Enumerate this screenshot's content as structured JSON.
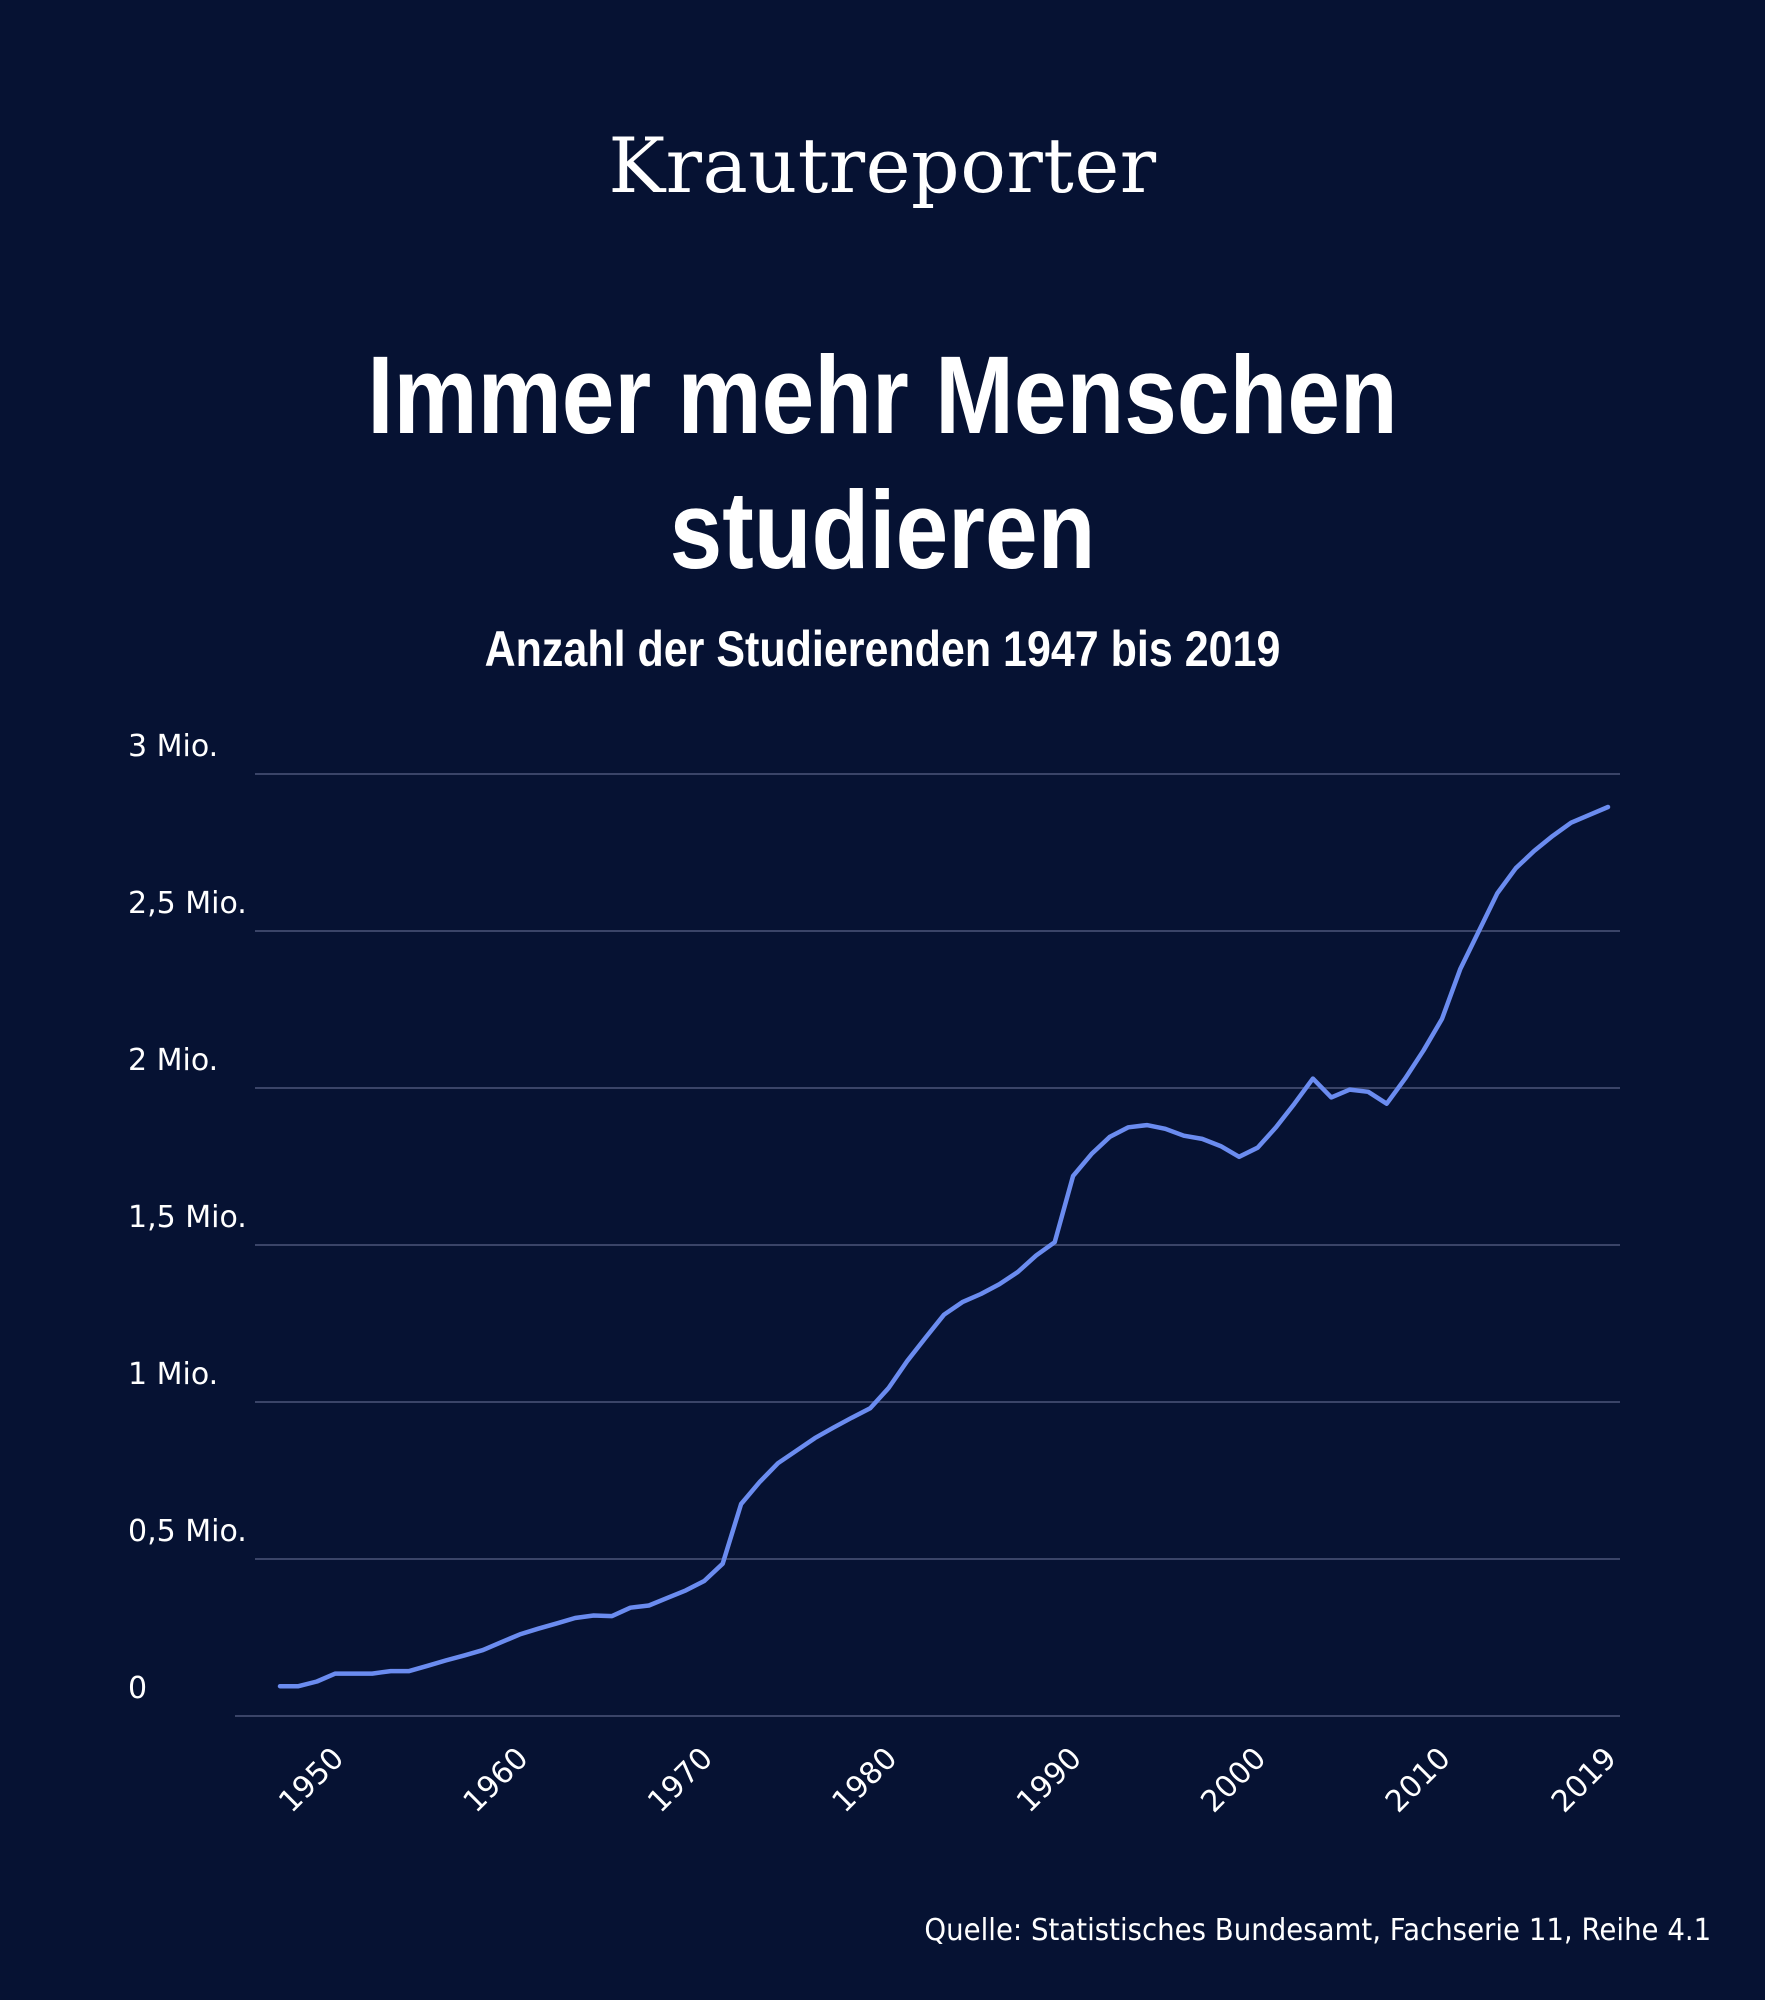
{
  "brand": "Krautreporter",
  "title_line1": "Immer mehr Menschen",
  "title_line2": "studieren",
  "subtitle": "Anzahl der Studierenden 1947 bis 2019",
  "source": "Quelle: Statistisches Bundesamt, Fachserie 11, Reihe 4.1",
  "colors": {
    "background": "#061233",
    "line": "#6b8cf0",
    "grid": "#3a4468",
    "text": "#ffffff"
  },
  "chart_data": {
    "type": "line",
    "title": "Anzahl der Studierenden 1947 bis 2019",
    "xlabel": "",
    "ylabel": "",
    "xlim": [
      1947,
      2019
    ],
    "ylim": [
      0,
      3000000
    ],
    "y_ticks": [
      {
        "value": 0,
        "label": "0"
      },
      {
        "value": 500000,
        "label": "0,5 Mio."
      },
      {
        "value": 1000000,
        "label": "1 Mio."
      },
      {
        "value": 1500000,
        "label": "1,5 Mio."
      },
      {
        "value": 2000000,
        "label": "2 Mio."
      },
      {
        "value": 2500000,
        "label": "2,5 Mio."
      },
      {
        "value": 3000000,
        "label": "3 Mio."
      }
    ],
    "x_ticks": [
      {
        "value": 1950,
        "label": "1950"
      },
      {
        "value": 1960,
        "label": "1960"
      },
      {
        "value": 1970,
        "label": "1970"
      },
      {
        "value": 1980,
        "label": "1980"
      },
      {
        "value": 1990,
        "label": "1990"
      },
      {
        "value": 2000,
        "label": "2000"
      },
      {
        "value": 2010,
        "label": "2010"
      },
      {
        "value": 2019,
        "label": "2019"
      }
    ],
    "grid": true,
    "series": [
      {
        "name": "Studierende",
        "x": [
          1947,
          1948,
          1949,
          1950,
          1951,
          1952,
          1953,
          1954,
          1955,
          1956,
          1957,
          1958,
          1959,
          1960,
          1961,
          1962,
          1963,
          1964,
          1965,
          1966,
          1967,
          1968,
          1969,
          1970,
          1971,
          1972,
          1973,
          1974,
          1975,
          1976,
          1977,
          1978,
          1979,
          1980,
          1981,
          1982,
          1983,
          1984,
          1985,
          1986,
          1987,
          1988,
          1989,
          1990,
          1991,
          1992,
          1993,
          1994,
          1995,
          1996,
          1997,
          1998,
          1999,
          2000,
          2001,
          2002,
          2003,
          2004,
          2005,
          2006,
          2007,
          2008,
          2009,
          2010,
          2011,
          2012,
          2013,
          2014,
          2015,
          2016,
          2017,
          2018,
          2019
        ],
        "values": [
          95000,
          95000,
          110000,
          135000,
          135000,
          135000,
          143000,
          143000,
          160000,
          177000,
          193000,
          210000,
          235000,
          260000,
          278000,
          295000,
          312000,
          320000,
          318000,
          345000,
          352000,
          376000,
          400000,
          430000,
          485000,
          675000,
          745000,
          805000,
          845000,
          885000,
          918000,
          950000,
          980000,
          1045000,
          1130000,
          1205000,
          1278000,
          1318000,
          1344000,
          1375000,
          1414000,
          1467000,
          1509000,
          1720000,
          1790000,
          1845000,
          1875000,
          1882000,
          1870000,
          1848000,
          1838000,
          1815000,
          1781000,
          1810000,
          1875000,
          1950000,
          2030000,
          1970000,
          1995000,
          1988000,
          1950000,
          2030000,
          2120000,
          2220000,
          2380000,
          2500000,
          2620000,
          2700000,
          2755000,
          2803000,
          2845000,
          2870000,
          2895000
        ]
      }
    ]
  }
}
